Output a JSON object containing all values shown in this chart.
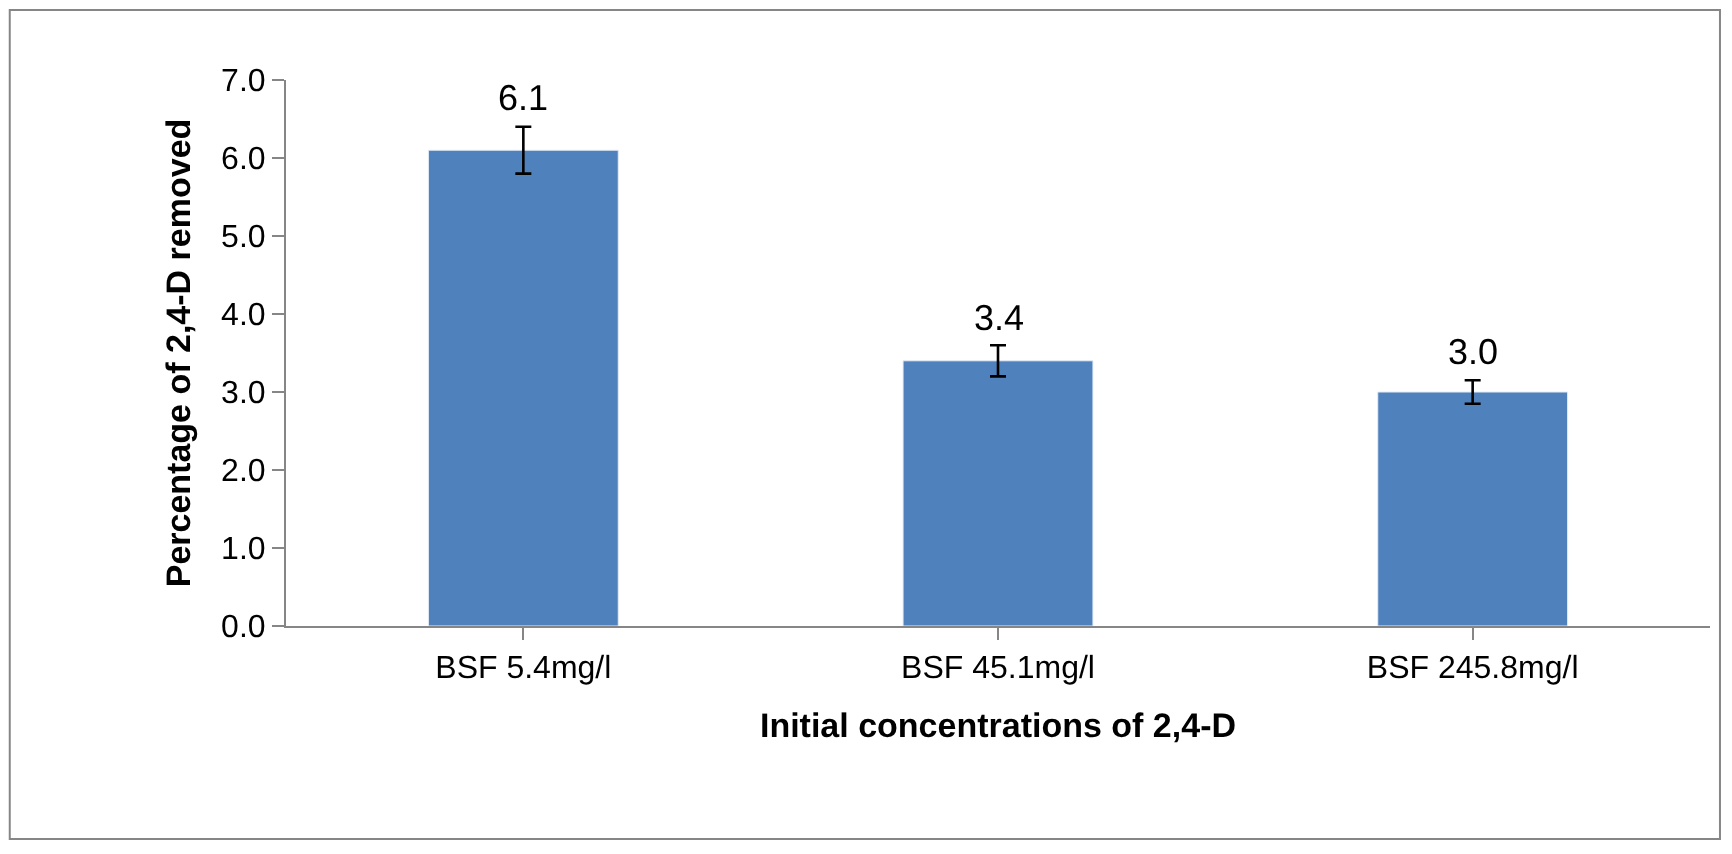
{
  "chart_data": {
    "type": "bar",
    "xlabel": "Initial concentrations of 2,4-D",
    "ylabel": "Percentage of 2,4-D removed",
    "categories": [
      "BSF 5.4mg/l",
      "BSF 45.1mg/l",
      "BSF 245.8mg/l"
    ],
    "values": [
      6.1,
      3.4,
      3.0
    ],
    "errors": [
      0.3,
      0.2,
      0.15
    ],
    "color": "#4f81bd",
    "ylim": [
      0,
      7
    ],
    "yticks": [
      {
        "value": 0,
        "label": "0.0"
      },
      {
        "value": 1,
        "label": "1.0"
      },
      {
        "value": 2,
        "label": "2.0"
      },
      {
        "value": 3,
        "label": "3.0"
      },
      {
        "value": 4,
        "label": "4.0"
      },
      {
        "value": 5,
        "label": "5.0"
      },
      {
        "value": 6,
        "label": "6.0"
      },
      {
        "value": 7,
        "label": "7.0"
      }
    ],
    "value_labels": [
      "6.1",
      "3.4",
      "3.0"
    ],
    "legend": false
  }
}
